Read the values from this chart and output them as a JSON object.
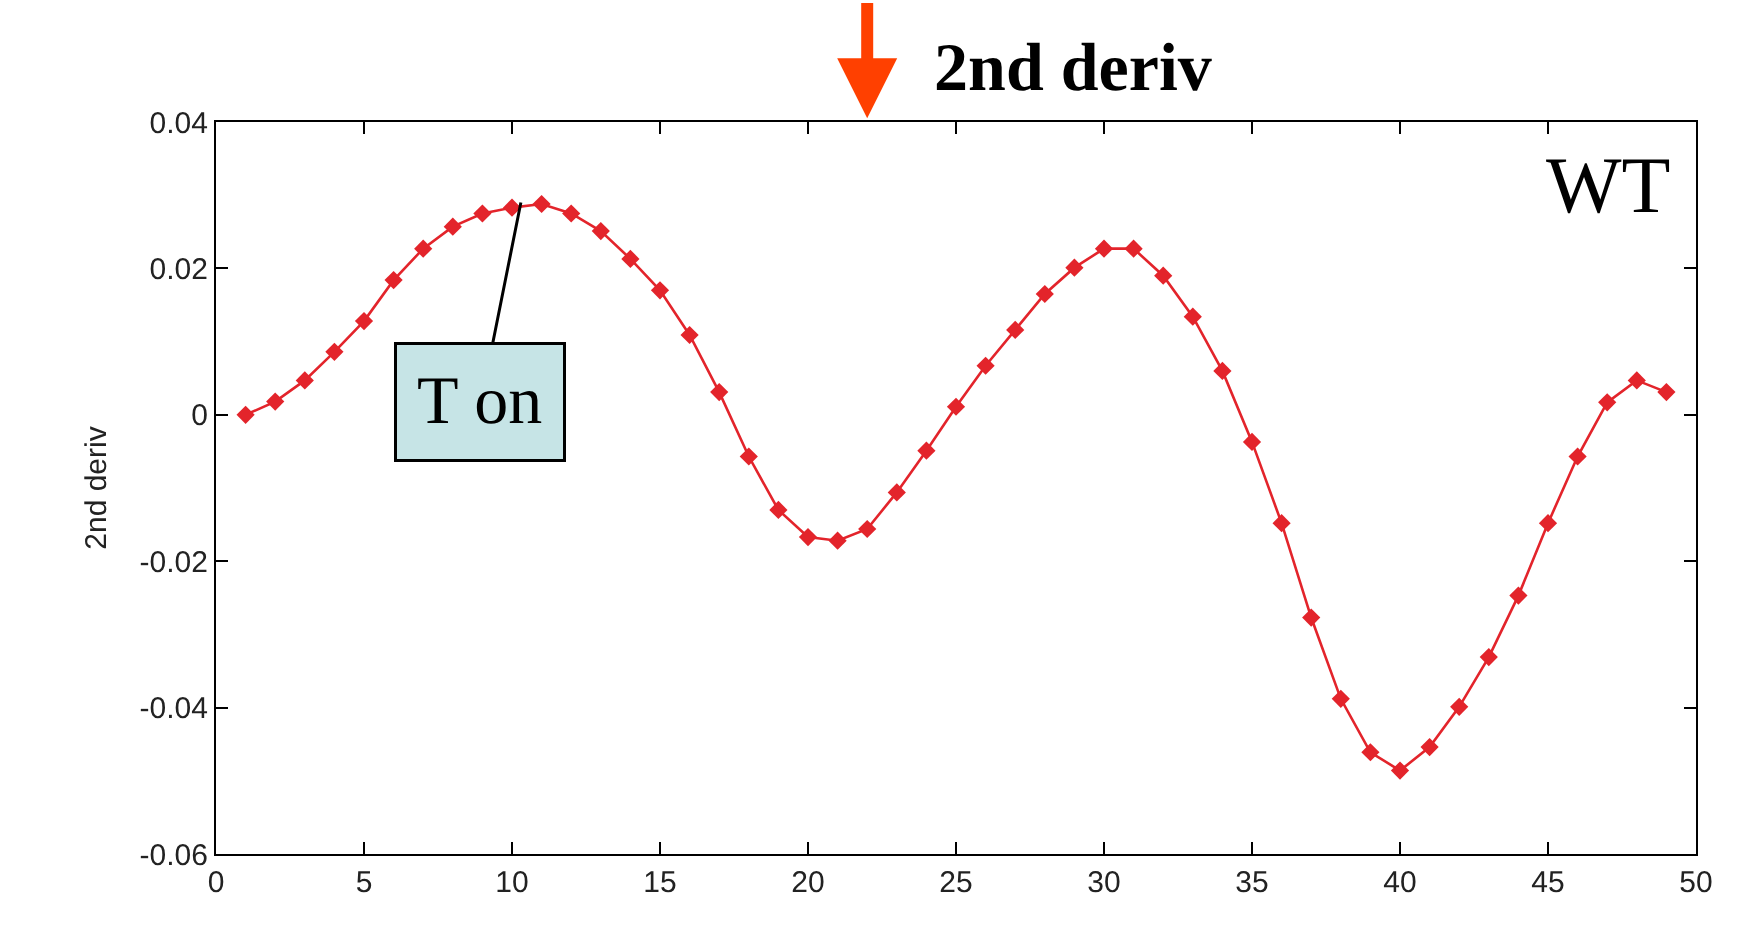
{
  "chart_data": {
    "type": "line",
    "title": "2nd deriv",
    "ylabel": "2nd deriv",
    "annotations": [
      "WT",
      {
        "text": "T on",
        "x": 10.3,
        "y": 0.029
      }
    ],
    "x": [
      1,
      2,
      3,
      4,
      5,
      6,
      7,
      8,
      9,
      10,
      11,
      12,
      13,
      14,
      15,
      16,
      17,
      18,
      19,
      20,
      21,
      22,
      23,
      24,
      25,
      26,
      27,
      28,
      29,
      30,
      31,
      32,
      33,
      34,
      35,
      36,
      37,
      38,
      39,
      40,
      41,
      42,
      43,
      44,
      45,
      46,
      47,
      48,
      49
    ],
    "series": [
      {
        "color": "#e3242b",
        "values": [
          0.0,
          0.0018,
          0.0047,
          0.0086,
          0.0128,
          0.0184,
          0.0227,
          0.0257,
          0.0275,
          0.0283,
          0.0288,
          0.0275,
          0.0251,
          0.0213,
          0.017,
          0.0109,
          0.0031,
          -0.0057,
          -0.013,
          -0.0167,
          -0.0172,
          -0.0156,
          -0.0106,
          -0.0049,
          0.0011,
          0.0067,
          0.0116,
          0.0165,
          0.0201,
          0.0227,
          0.0227,
          0.019,
          0.0134,
          0.006,
          -0.0037,
          -0.0148,
          -0.0277,
          -0.0388,
          -0.0461,
          -0.0486,
          -0.0454,
          -0.0399,
          -0.0331,
          -0.0247,
          -0.0148,
          -0.0057,
          0.0017,
          0.0047,
          0.0031
        ]
      }
    ],
    "xlim": [
      0,
      50
    ],
    "xticks": [
      0,
      5,
      10,
      15,
      20,
      25,
      30,
      35,
      40,
      45,
      50
    ],
    "ylim": [
      -0.06,
      0.04
    ],
    "yticks": [
      -0.06,
      -0.04,
      -0.02,
      0,
      0.02,
      0.04
    ],
    "marker": "diamond",
    "line_style": "solid"
  }
}
